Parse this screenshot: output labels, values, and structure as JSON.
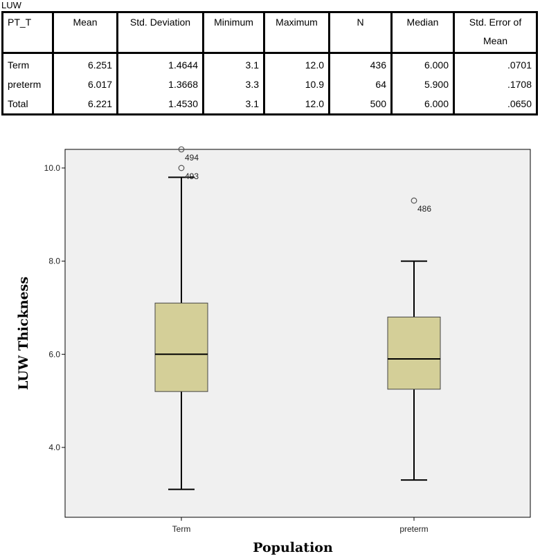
{
  "table": {
    "caption": "LUW",
    "headers": [
      "PT_T",
      "Mean",
      "Std. Deviation",
      "Minimum",
      "Maximum",
      "N",
      "Median",
      "Std. Error of Mean"
    ],
    "rows": [
      [
        "Term",
        "6.251",
        "1.4644",
        "3.1",
        "12.0",
        "436",
        "6.000",
        ".0701"
      ],
      [
        "preterm",
        "6.017",
        "1.3668",
        "3.3",
        "10.9",
        "64",
        "5.900",
        ".1708"
      ],
      [
        "Total",
        "6.221",
        "1.4530",
        "3.1",
        "12.0",
        "500",
        "6.000",
        ".0650"
      ]
    ]
  },
  "chart_data": {
    "type": "boxplot",
    "xlabel": "Population",
    "ylabel": "LUW Thickness",
    "categories": [
      "Term",
      "preterm"
    ],
    "ylim": [
      2.5,
      10.4
    ],
    "yticks": [
      "4.0",
      "6.0",
      "8.0",
      "10.0"
    ],
    "grid": false,
    "box_color": "#d4cf98",
    "plot_background": "#f0f0f0",
    "boxes": [
      {
        "category": "Term",
        "whisker_low": 3.1,
        "q1": 5.2,
        "median": 6.0,
        "q3": 7.1,
        "whisker_high": 9.8,
        "outliers": [
          {
            "label": "494",
            "value": 10.4
          },
          {
            "label": "493",
            "value": 10.0
          }
        ]
      },
      {
        "category": "preterm",
        "whisker_low": 3.3,
        "q1": 5.25,
        "median": 5.9,
        "q3": 6.8,
        "whisker_high": 8.0,
        "outliers": [
          {
            "label": "486",
            "value": 9.3
          }
        ]
      }
    ]
  }
}
